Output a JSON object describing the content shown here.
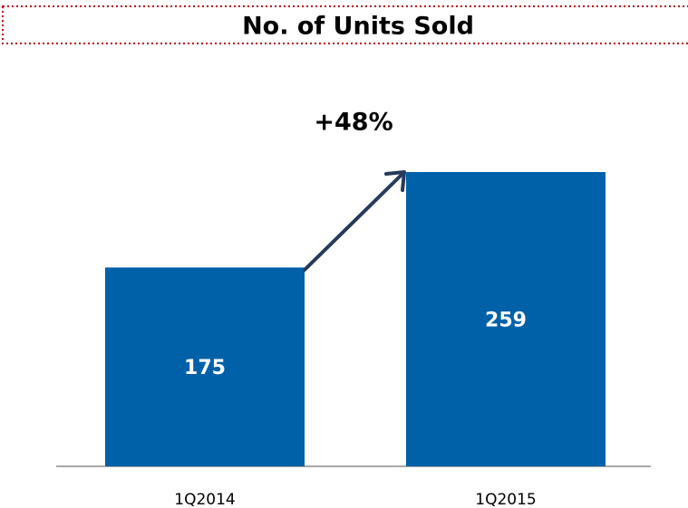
{
  "chart_data": {
    "type": "bar",
    "title": "No. of Units Sold",
    "annotation": "+48%",
    "categories": [
      "1Q2014",
      "1Q2015"
    ],
    "values": [
      175,
      259
    ],
    "color": "#0060a8"
  }
}
